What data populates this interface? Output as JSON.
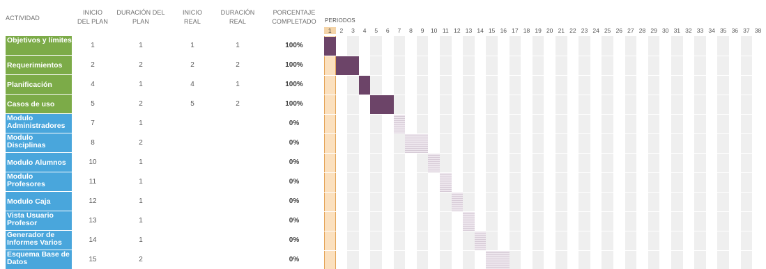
{
  "headers": {
    "actividad": "ACTIVIDAD",
    "inicio_plan": [
      "INICIO",
      "DEL PLAN"
    ],
    "duracion_plan": [
      "DURACIÓN DEL",
      "PLAN"
    ],
    "inicio_real": [
      "INICIO",
      "REAL"
    ],
    "duracion_real": [
      "DURACIÓN",
      "REAL"
    ],
    "porcentaje": [
      "PORCENTAJE",
      "COMPLETADO"
    ],
    "periodos": "PERIODOS"
  },
  "current_period": 1,
  "periods": [
    "1",
    "2",
    "3",
    "4",
    "5",
    "6",
    "7",
    "8",
    "9",
    "10",
    "11",
    "12",
    "13",
    "14",
    "15",
    "16",
    "17",
    "18",
    "19",
    "20",
    "21",
    "22",
    "23",
    "24",
    "25",
    "26",
    "27",
    "28",
    "29",
    "30",
    "31",
    "32",
    "33",
    "34",
    "35",
    "36",
    "37",
    "38"
  ],
  "colors": {
    "activity_done": "#7cab48",
    "activity_pending": "#49a6dc",
    "bar_actual": "#6c4468",
    "bar_plan": "#d6cad6",
    "current_period": "#fbe0be"
  },
  "activities": [
    {
      "name": "Objetivos y límites",
      "inicio_plan": "1",
      "duracion_plan": "1",
      "inicio_real": "1",
      "duracion_real": "1",
      "porcentaje": "100%",
      "status": "done"
    },
    {
      "name": "Requerimientos",
      "inicio_plan": "2",
      "duracion_plan": "2",
      "inicio_real": "2",
      "duracion_real": "2",
      "porcentaje": "100%",
      "status": "done"
    },
    {
      "name": "Planificación",
      "inicio_plan": "4",
      "duracion_plan": "1",
      "inicio_real": "4",
      "duracion_real": "1",
      "porcentaje": "100%",
      "status": "done"
    },
    {
      "name": "Casos de uso",
      "inicio_plan": "5",
      "duracion_plan": "2",
      "inicio_real": "5",
      "duracion_real": "2",
      "porcentaje": "100%",
      "status": "done"
    },
    {
      "name": "Modulo Administradores",
      "inicio_plan": "7",
      "duracion_plan": "1",
      "inicio_real": "",
      "duracion_real": "",
      "porcentaje": "0%",
      "status": "pending"
    },
    {
      "name": "Modulo Disciplinas",
      "inicio_plan": "8",
      "duracion_plan": "2",
      "inicio_real": "",
      "duracion_real": "",
      "porcentaje": "0%",
      "status": "pending"
    },
    {
      "name": "Modulo Alumnos",
      "inicio_plan": "10",
      "duracion_plan": "1",
      "inicio_real": "",
      "duracion_real": "",
      "porcentaje": "0%",
      "status": "pending"
    },
    {
      "name": "Modulo Profesores",
      "inicio_plan": "11",
      "duracion_plan": "1",
      "inicio_real": "",
      "duracion_real": "",
      "porcentaje": "0%",
      "status": "pending"
    },
    {
      "name": "Modulo Caja",
      "inicio_plan": "12",
      "duracion_plan": "1",
      "inicio_real": "",
      "duracion_real": "",
      "porcentaje": "0%",
      "status": "pending"
    },
    {
      "name": "Vista Usuario Profesor",
      "inicio_plan": "13",
      "duracion_plan": "1",
      "inicio_real": "",
      "duracion_real": "",
      "porcentaje": "0%",
      "status": "pending"
    },
    {
      "name": "Generador de Informes Varios",
      "inicio_plan": "14",
      "duracion_plan": "1",
      "inicio_real": "",
      "duracion_real": "",
      "porcentaje": "0%",
      "status": "pending"
    },
    {
      "name": "Esquema Base de Datos",
      "inicio_plan": "15",
      "duracion_plan": "2",
      "inicio_real": "",
      "duracion_real": "",
      "porcentaje": "0%",
      "status": "pending"
    }
  ]
}
